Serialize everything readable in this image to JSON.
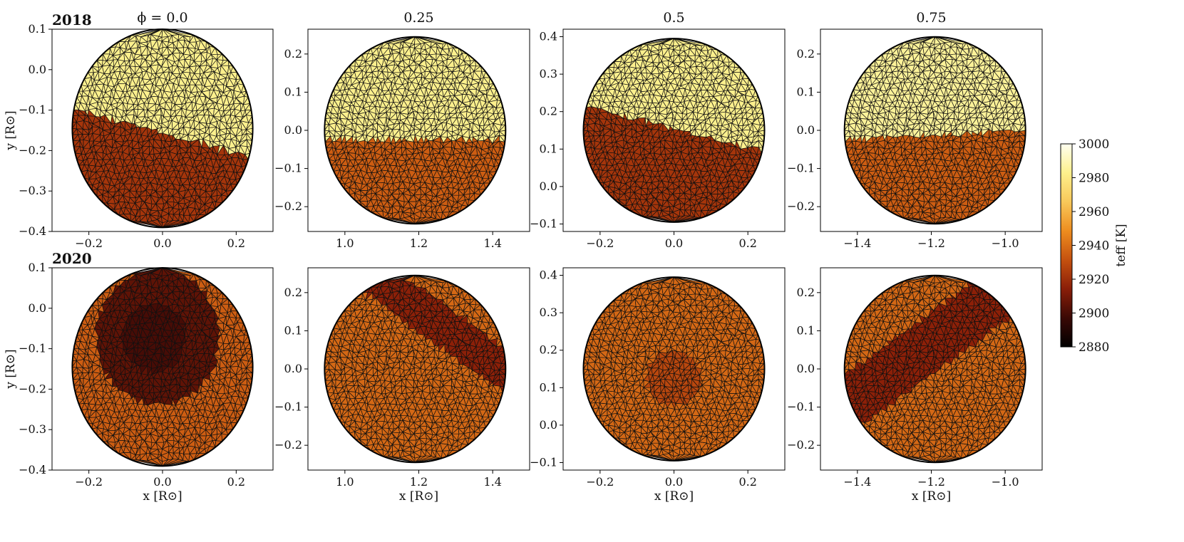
{
  "chart_data": {
    "type": "heatmap",
    "column_titles": [
      "ϕ = 0.0",
      "0.25",
      "0.5",
      "0.75"
    ],
    "row_titles": [
      "2018",
      "2020"
    ],
    "xlabel": "x [R⊙]",
    "ylabel": "y [R⊙]",
    "colorbar": {
      "label": "teff [K]",
      "range": [
        2880,
        3000
      ],
      "ticks": [
        "2880",
        "2900",
        "2920",
        "2940",
        "2960",
        "2980",
        "3000"
      ],
      "colors": [
        "#000000",
        "#3a0905",
        "#8a1e08",
        "#c5510f",
        "#ed8d1f",
        "#f8c85a",
        "#fdf08c",
        "#fffff0"
      ]
    },
    "columns": [
      {
        "xlim": [
          -0.3,
          0.3
        ],
        "ylim": [
          -0.4,
          0.1
        ],
        "center": [
          0.0,
          -0.145
        ],
        "radius": 0.245,
        "xticks": [
          "−0.2",
          "0.0",
          "0.2"
        ],
        "xtick_values": [
          -0.2,
          0.0,
          0.2
        ],
        "yticks": [
          "0.1",
          "0.0",
          "−0.1",
          "−0.2",
          "−0.3",
          "−0.4"
        ],
        "ytick_values": [
          0.1,
          0.0,
          -0.1,
          -0.2,
          -0.3,
          -0.4
        ]
      },
      {
        "xlim": [
          0.9,
          1.5
        ],
        "ylim": [
          -0.265,
          0.265
        ],
        "center": [
          1.19,
          0.0
        ],
        "radius": 0.245,
        "xticks": [
          "1.0",
          "1.2",
          "1.4"
        ],
        "xtick_values": [
          1.0,
          1.2,
          1.4
        ],
        "yticks": [
          "0.2",
          "0.1",
          "0.0",
          "−0.1",
          "−0.2"
        ],
        "ytick_values": [
          0.2,
          0.1,
          0.0,
          -0.1,
          -0.2
        ]
      },
      {
        "xlim": [
          -0.3,
          0.3
        ],
        "ylim": [
          -0.12,
          0.42
        ],
        "center": [
          0.0,
          0.15
        ],
        "radius": 0.245,
        "xticks": [
          "−0.2",
          "0.0",
          "0.2"
        ],
        "xtick_values": [
          -0.2,
          0.0,
          0.2
        ],
        "yticks": [
          "0.4",
          "0.3",
          "0.2",
          "0.1",
          "0.0",
          "−0.1"
        ],
        "ytick_values": [
          0.4,
          0.3,
          0.2,
          0.1,
          0.0,
          -0.1
        ]
      },
      {
        "xlim": [
          -1.5,
          -0.9
        ],
        "ylim": [
          -0.265,
          0.265
        ],
        "center": [
          -1.19,
          0.0
        ],
        "radius": 0.245,
        "xticks": [
          "−1.4",
          "−1.2",
          "−1.0"
        ],
        "xtick_values": [
          -1.4,
          -1.2,
          -1.0
        ],
        "yticks": [
          "0.2",
          "0.1",
          "0.0",
          "−0.1",
          "−0.2"
        ],
        "ytick_values": [
          0.2,
          0.1,
          0.0,
          -0.1,
          -0.2
        ]
      }
    ],
    "panels": [
      {
        "row": 0,
        "col": 0,
        "base_teff": 2922,
        "features": [
          {
            "kind": "cap",
            "tilt": 0.25,
            "boundary": -0.05,
            "teff": 2983
          }
        ]
      },
      {
        "row": 0,
        "col": 1,
        "base_teff": 2935,
        "features": [
          {
            "kind": "cap",
            "tilt": 0.0,
            "boundary": -0.1,
            "teff": 2983
          }
        ]
      },
      {
        "row": 0,
        "col": 2,
        "base_teff": 2922,
        "features": [
          {
            "kind": "cap",
            "tilt": 0.25,
            "boundary": 0.02,
            "teff": 2983
          }
        ]
      },
      {
        "row": 0,
        "col": 3,
        "base_teff": 2935,
        "features": [
          {
            "kind": "cap",
            "tilt": -0.05,
            "boundary": -0.05,
            "teff": 2985
          }
        ]
      },
      {
        "row": 1,
        "col": 0,
        "base_teff": 2935,
        "features": [
          {
            "kind": "spot",
            "u": -0.05,
            "v": 0.3,
            "r": 0.68,
            "teff": 2905
          },
          {
            "kind": "spot",
            "u": -0.1,
            "v": 0.3,
            "r": 0.35,
            "teff": 2900
          }
        ]
      },
      {
        "row": 1,
        "col": 1,
        "base_teff": 2938,
        "features": [
          {
            "kind": "band",
            "angle": 55,
            "offset": 0.55,
            "width": 0.4,
            "teff": 2915
          }
        ]
      },
      {
        "row": 1,
        "col": 2,
        "base_teff": 2938,
        "features": [
          {
            "kind": "spot",
            "u": 0.0,
            "v": -0.1,
            "r": 0.3,
            "teff": 2928
          }
        ]
      },
      {
        "row": 1,
        "col": 3,
        "base_teff": 2938,
        "features": [
          {
            "kind": "band",
            "angle": -55,
            "offset": -0.25,
            "width": 0.55,
            "teff": 2915
          }
        ]
      }
    ]
  }
}
